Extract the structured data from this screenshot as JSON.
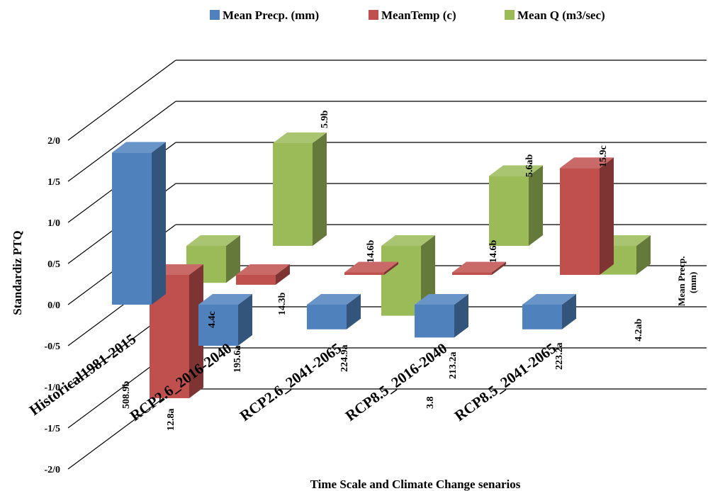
{
  "chart_data": {
    "type": "bar",
    "title": "",
    "xlabel": "Time Scale and Climate Change senarios",
    "ylabel": "Standardiz PTQ",
    "ylim": [
      -2.0,
      2.0
    ],
    "yticks": [
      "2/0",
      "1/5",
      "1/0",
      "0/5",
      "0/0",
      "-0/5",
      "-1/0",
      "-1/5",
      "-2/0"
    ],
    "ytick_values": [
      2.0,
      1.5,
      1.0,
      0.5,
      0.0,
      -0.5,
      -1.0,
      -1.5,
      -2.0
    ],
    "grid": true,
    "legend_position": "top",
    "categories": [
      "Historical1981-2015",
      "RCP2.6_2016-2040",
      "RCP2.6_2041-2065",
      "RCP8.5_2016-2040",
      "RCP8.5_2041-2065"
    ],
    "series": [
      {
        "name": "Mean Precp. (mm)",
        "color": "#4f81bd",
        "values": [
          1.85,
          -0.5,
          -0.3,
          -0.4,
          -0.3
        ],
        "labels": [
          "508.9b",
          "195.6a",
          "224.9a",
          "213.2a",
          "223.2a"
        ]
      },
      {
        "name": "MeanTemp (c)",
        "color": "#c0504d",
        "values": [
          -1.5,
          -0.12,
          0.03,
          0.03,
          1.3
        ],
        "labels": [
          "12.8a",
          "14.3b",
          "14.6b",
          "14.6b",
          "15.9c"
        ]
      },
      {
        "name": "Mean Q (m3/sec)",
        "color": "#9bbb59",
        "values": [
          -0.45,
          1.25,
          -0.85,
          0.85,
          -0.35
        ],
        "labels": [
          "4.4c",
          "5.9b",
          "3.8",
          "5.6ab",
          "4.2ab"
        ]
      }
    ],
    "depth_series_label": "Mean Precp. (mm)"
  }
}
